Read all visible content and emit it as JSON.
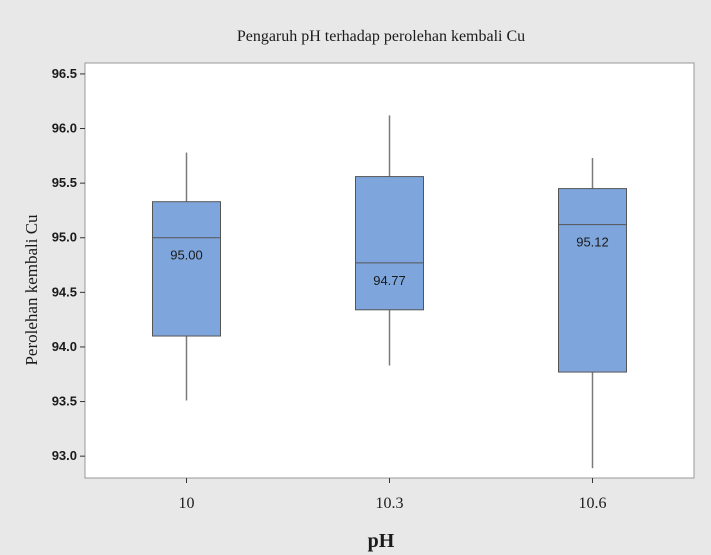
{
  "chart_data": {
    "type": "box",
    "title": "Pengaruh pH terhadap perolehan kembali Cu",
    "xlabel": "pH",
    "ylabel": "Perolehan kembali Cu",
    "ylim": [
      92.8,
      96.6
    ],
    "yticks": [
      "93.0",
      "93.5",
      "94.0",
      "94.5",
      "95.0",
      "95.5",
      "96.0",
      "96.5"
    ],
    "ytick_values": [
      93.0,
      93.5,
      94.0,
      94.5,
      95.0,
      95.5,
      96.0,
      96.5
    ],
    "categories": [
      "10",
      "10.3",
      "10.6"
    ],
    "boxes": [
      {
        "category": "10",
        "min": 93.51,
        "q1": 94.1,
        "median": 95.0,
        "q3": 95.33,
        "max": 95.78,
        "median_label": "95.00"
      },
      {
        "category": "10.3",
        "min": 93.83,
        "q1": 94.34,
        "median": 94.77,
        "q3": 95.56,
        "max": 96.12,
        "median_label": "94.77"
      },
      {
        "category": "10.6",
        "min": 92.89,
        "q1": 93.77,
        "median": 95.12,
        "q3": 95.45,
        "max": 95.73,
        "median_label": "95.12"
      }
    ],
    "grid": false,
    "colors": {
      "outer_background": "#e8e8e8",
      "plot_background": "#ffffff",
      "box_fill": "#7ea6dc",
      "box_stroke": "#555555",
      "whisker": "#7a7a7a",
      "frame": "#999999"
    }
  }
}
